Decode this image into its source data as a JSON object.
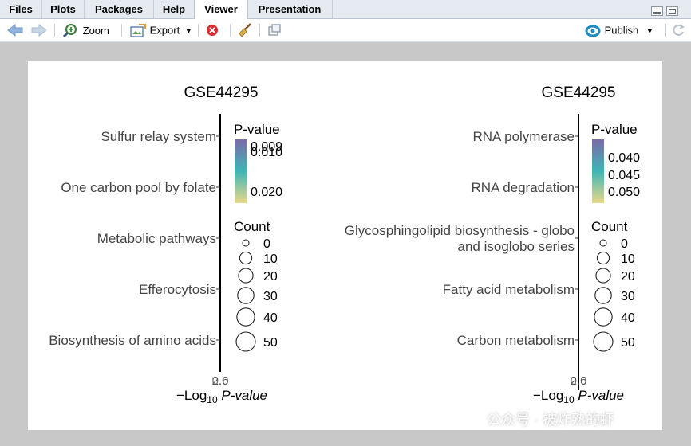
{
  "tabs": [
    {
      "label": "Files",
      "active": false
    },
    {
      "label": "Plots",
      "active": false
    },
    {
      "label": "Packages",
      "active": false
    },
    {
      "label": "Help",
      "active": false
    },
    {
      "label": "Viewer",
      "active": true
    },
    {
      "label": "Presentation",
      "active": false
    }
  ],
  "toolbar": {
    "zoom_label": "Zoom",
    "export_label": "Export",
    "publish_label": "Publish"
  },
  "icons": [
    "back-arrow-icon",
    "forward-arrow-icon",
    "zoom-icon",
    "export-icon",
    "stop-icon",
    "broom-icon",
    "popout-icon",
    "publish-icon",
    "refresh-icon"
  ],
  "colors": {
    "accent": "#2a7bd1",
    "stop": "#cc2222",
    "gradient_top": "#7a6aa8",
    "gradient_mid": "#3fb5b5",
    "gradient_bottom": "#ead88a"
  },
  "chart_data": [
    {
      "type": "scatter",
      "title": "GSE44295",
      "categories": [
        "Sulfur relay system",
        "One carbon pool by folate",
        "Metabolic pathways",
        "Efferocytosis",
        "Biosynthesis of amino acids"
      ],
      "xlabel_prefix": "−Log",
      "xlabel_sub": "10",
      "xlabel_italic": "P-value",
      "x_tick_overlap": [
        "2.6",
        "0.0"
      ],
      "color_legend": {
        "title": "P-value",
        "ticks": [
          "0.009",
          "0.010",
          "0.020"
        ]
      },
      "size_legend": {
        "title": "Count",
        "ticks": [
          "0",
          "10",
          "20",
          "30",
          "40",
          "50"
        ]
      }
    },
    {
      "type": "scatter",
      "title": "GSE44295",
      "categories": [
        "RNA polymerase",
        "RNA degradation",
        "Glycosphingolipid biosynthesis - globo",
        "and isoglobo series",
        "Fatty acid metabolism",
        "Carbon metabolism"
      ],
      "xlabel_prefix": "−Log",
      "xlabel_sub": "10",
      "xlabel_italic": "P-value",
      "x_tick_overlap": [
        "2.6",
        "0.0"
      ],
      "color_legend": {
        "title": "P-value",
        "ticks": [
          "0.040",
          "0.045",
          "0.050"
        ]
      },
      "size_legend": {
        "title": "Count",
        "ticks": [
          "0",
          "10",
          "20",
          "30",
          "40",
          "50"
        ]
      }
    }
  ],
  "watermark": "公众号 · 被炸熟的虾"
}
